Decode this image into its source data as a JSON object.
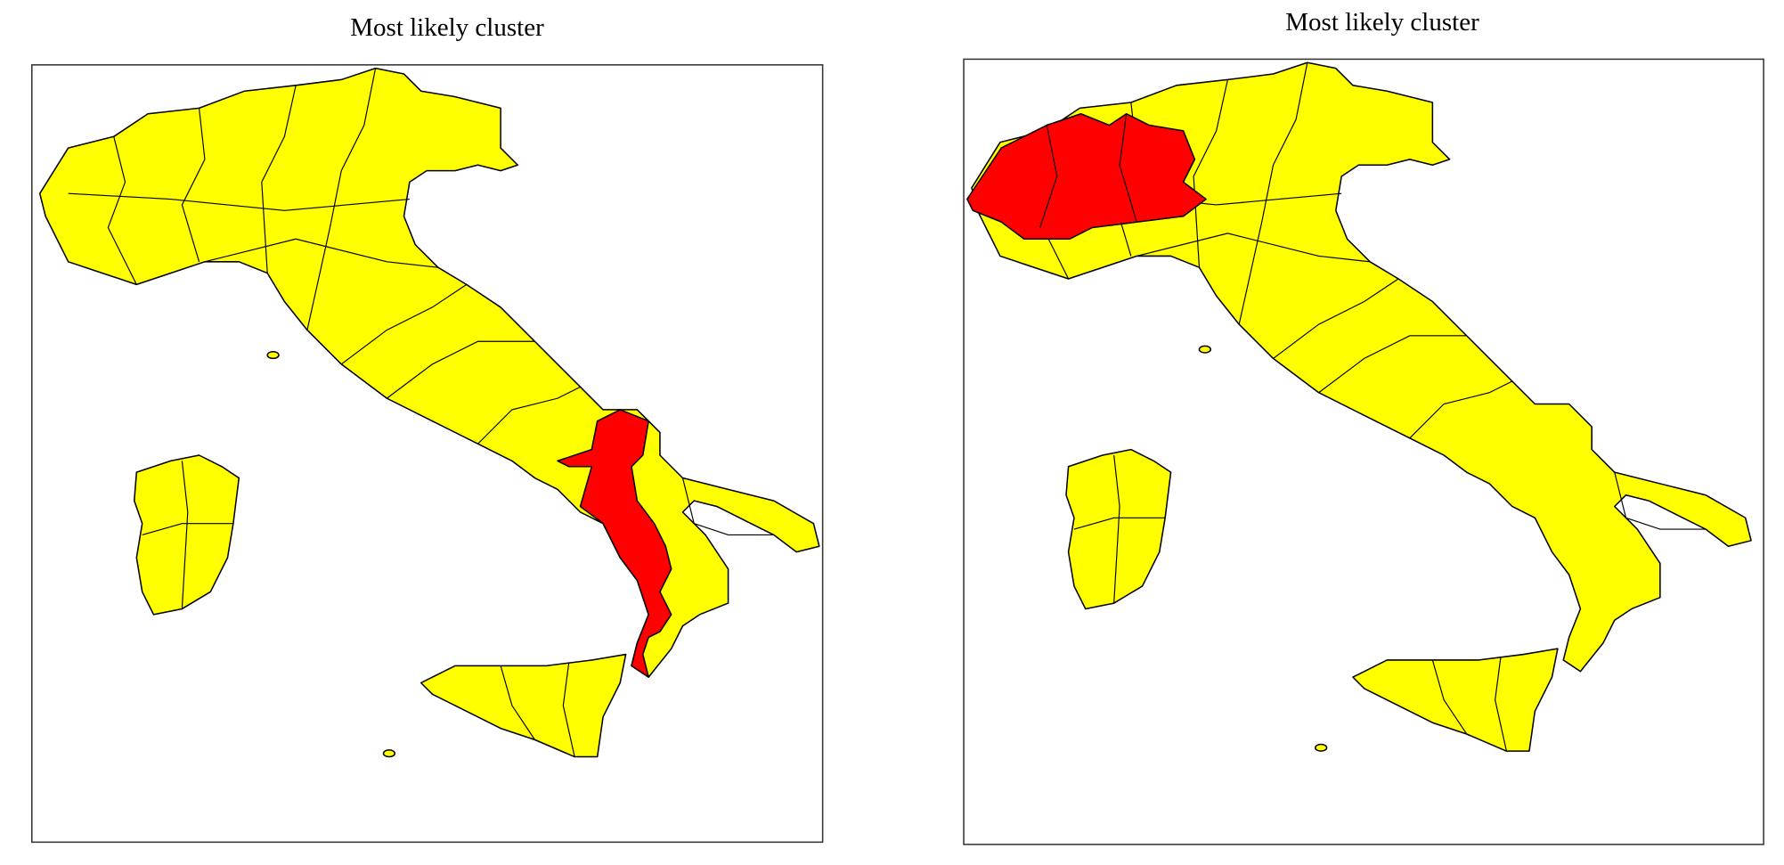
{
  "panels": [
    {
      "title": "Most likely cluster"
    },
    {
      "title": "Most likely cluster"
    }
  ]
}
